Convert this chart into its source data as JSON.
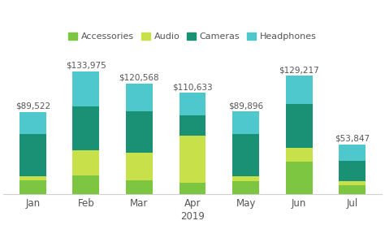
{
  "months": [
    "Jan",
    "Feb",
    "Mar",
    "Apr",
    "May",
    "Jun",
    "Jul"
  ],
  "xlabel": "2019",
  "totals": [
    89522,
    133975,
    120568,
    110633,
    89896,
    129217,
    53847
  ],
  "categories": [
    "Accessories",
    "Audio",
    "Cameras",
    "Headphones"
  ],
  "colors": [
    "#7dc642",
    "#c8e04a",
    "#1a9175",
    "#4ec8cc"
  ],
  "values": {
    "Accessories": [
      15000,
      20000,
      15000,
      12000,
      14000,
      35000,
      9000
    ],
    "Audio": [
      4000,
      28000,
      30000,
      52000,
      5000,
      15000,
      5000
    ],
    "Cameras": [
      46000,
      48000,
      45000,
      22000,
      46000,
      48000,
      22000
    ],
    "Headphones": [
      24522,
      37975,
      30568,
      24633,
      24896,
      31217,
      17847
    ]
  },
  "bar_width": 0.5,
  "background_color": "#ffffff",
  "text_color": "#555555",
  "total_fontsize": 7.5,
  "tick_fontsize": 8.5,
  "legend_fontsize": 8,
  "ylim": [
    0,
    152000
  ]
}
